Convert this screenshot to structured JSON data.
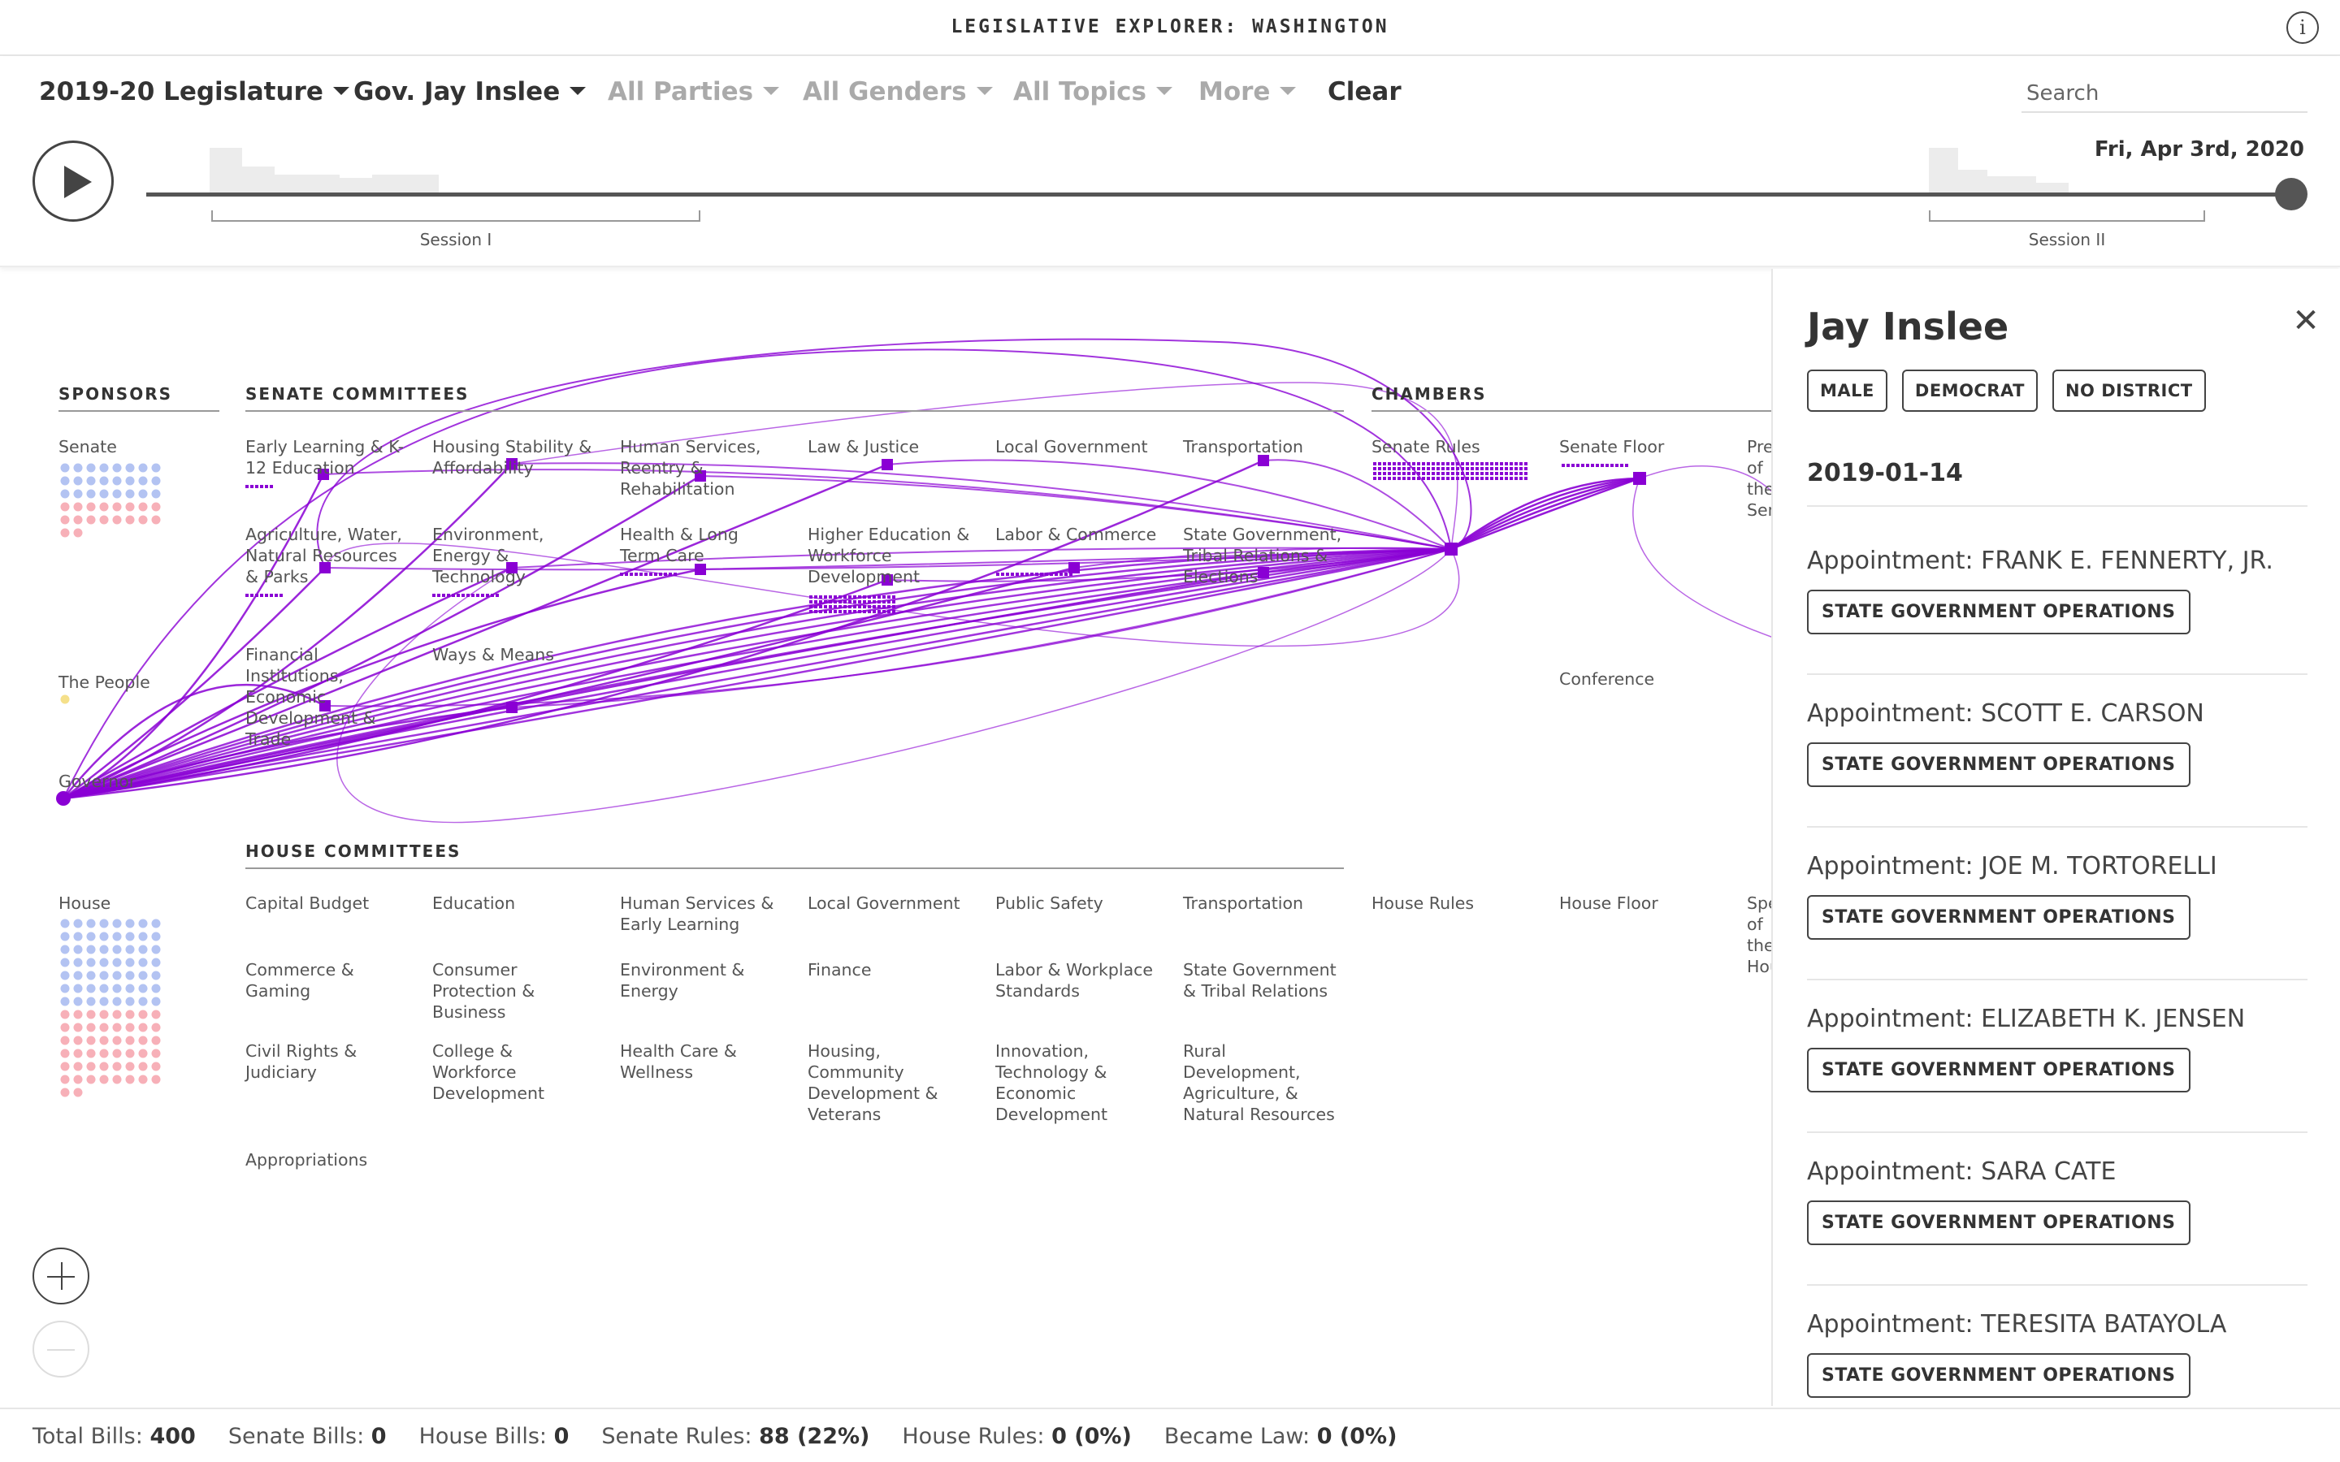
{
  "app": {
    "title": "LEGISLATIVE EXPLORER: WASHINGTON",
    "info_glyph": "i"
  },
  "filters": [
    {
      "id": "legislature",
      "label": "2019-20 Legislature",
      "active": true
    },
    {
      "id": "sponsor",
      "label": "Gov. Jay Inslee",
      "active": true
    },
    {
      "id": "parties",
      "label": "All Parties",
      "active": false
    },
    {
      "id": "genders",
      "label": "All Genders",
      "active": false
    },
    {
      "id": "topics",
      "label": "All Topics",
      "active": false
    },
    {
      "id": "more",
      "label": "More",
      "active": false
    }
  ],
  "clear_label": "Clear",
  "search": {
    "placeholder": "Search",
    "value": ""
  },
  "timeline": {
    "current_date": "Fri, Apr 3rd, 2020",
    "sessions": [
      "Session I",
      "Session II"
    ],
    "progress": 1.0
  },
  "sections": {
    "sponsors": "SPONSORS",
    "senate_committees": "SENATE COMMITTEES",
    "chambers": "CHAMBERS",
    "house_committees": "HOUSE COMMITTEES"
  },
  "sponsor_groups": {
    "senate": "Senate",
    "people": "The People",
    "governor": "Governor",
    "house": "House"
  },
  "senate_committees": [
    "Early Learning & K-12 Education",
    "Housing Stability & Affordability",
    "Human Services, Reentry & Rehabilitation",
    "Law & Justice",
    "Local Government",
    "Transportation",
    "Agriculture, Water, Natural Resources & Parks",
    "Environment, Energy & Technology",
    "Health & Long Term Care",
    "Higher Education & Workforce Development",
    "Labor & Commerce",
    "State Government, Tribal Relations & Elections",
    "Financial Institutions, Economic Development & Trade",
    "Ways & Means"
  ],
  "chambers": [
    "Senate Rules",
    "Senate Floor",
    "President of the Senate",
    "Conference",
    "House Rules",
    "House Floor",
    "Speaker of the House"
  ],
  "house_committees": [
    "Capital Budget",
    "Education",
    "Human Services & Early Learning",
    "Local Government",
    "Public Safety",
    "Transportation",
    "Commerce & Gaming",
    "Consumer Protection & Business",
    "Environment & Energy",
    "Finance",
    "Labor & Workplace Standards",
    "State Government & Tribal Relations",
    "Civil Rights & Judiciary",
    "College & Workforce Development",
    "Health Care & Wellness",
    "Housing, Community Development & Veterans",
    "Innovation, Technology & Economic Development",
    "Rural Development, Agriculture, & Natural Resources",
    "Appropriations"
  ],
  "colors": {
    "flow": "#8a00d4",
    "democrat_dot": "#b3c3f2",
    "republican_dot": "#f7b0b8",
    "people_dot": "#f5e08a"
  },
  "panel": {
    "name": "Jay Inslee",
    "close_glyph": "✕",
    "badges": [
      "MALE",
      "DEMOCRAT",
      "NO DISTRICT"
    ],
    "date": "2019-01-14",
    "actions": [
      {
        "title": "Appointment: FRANK E. FENNERTY, JR.",
        "tag": "STATE GOVERNMENT OPERATIONS"
      },
      {
        "title": "Appointment: SCOTT E. CARSON",
        "tag": "STATE GOVERNMENT OPERATIONS"
      },
      {
        "title": "Appointment: JOE M. TORTORELLI",
        "tag": "STATE GOVERNMENT OPERATIONS"
      },
      {
        "title": "Appointment: ELIZABETH K. JENSEN",
        "tag": "STATE GOVERNMENT OPERATIONS"
      },
      {
        "title": "Appointment: SARA CATE",
        "tag": "STATE GOVERNMENT OPERATIONS"
      },
      {
        "title": "Appointment: TERESITA BATAYOLA",
        "tag": "STATE GOVERNMENT OPERATIONS"
      }
    ]
  },
  "status": [
    {
      "label": "Total Bills:",
      "value": "400"
    },
    {
      "label": "Senate Bills:",
      "value": "0"
    },
    {
      "label": "House Bills:",
      "value": "0"
    },
    {
      "label": "Senate Rules:",
      "value": "88 (22%)"
    },
    {
      "label": "House Rules:",
      "value": "0 (0%)"
    },
    {
      "label": "Became Law:",
      "value": "0 (0%)"
    }
  ]
}
